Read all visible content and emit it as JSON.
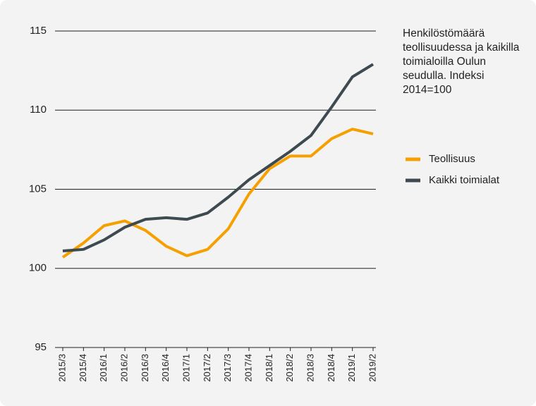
{
  "chart_data": {
    "type": "line",
    "title": "Henkilöstömäärä teollisuudessa ja kaikilla toimialoilla Oulun seudulla. Indeksi 2014=100",
    "categories": [
      "2015/3",
      "2015/4",
      "2016/1",
      "2016/2",
      "2016/3",
      "2016/4",
      "2017/1",
      "2017/2",
      "2017/3",
      "2017/4",
      "2018/1",
      "2018/2",
      "2018/3",
      "2018/4",
      "2019/1",
      "2019/2"
    ],
    "series": [
      {
        "name": "Teollisuus",
        "color": "#f5a000",
        "values": [
          100.7,
          101.6,
          102.7,
          103.0,
          102.4,
          101.4,
          100.8,
          101.2,
          102.5,
          104.7,
          106.3,
          107.1,
          107.1,
          108.2,
          108.8,
          108.5
        ]
      },
      {
        "name": "Kaikki toimialat",
        "color": "#3d4a50",
        "values": [
          101.1,
          101.2,
          101.8,
          102.6,
          103.1,
          103.2,
          103.1,
          103.5,
          104.5,
          105.6,
          106.5,
          107.4,
          108.4,
          110.2,
          112.1,
          112.9
        ]
      }
    ],
    "ylim": [
      95,
      115
    ],
    "yticks": [
      95,
      100,
      105,
      110,
      115
    ],
    "grid": true
  }
}
